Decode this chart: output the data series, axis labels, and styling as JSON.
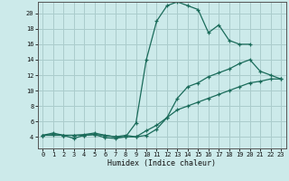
{
  "xlabel": "Humidex (Indice chaleur)",
  "bg_color": "#cceaea",
  "grid_color": "#aacccc",
  "line_color": "#1a6b5a",
  "xlim": [
    -0.5,
    23.5
  ],
  "ylim": [
    2.5,
    21.5
  ],
  "yticks": [
    4,
    6,
    8,
    10,
    12,
    14,
    16,
    18,
    20
  ],
  "xticks": [
    0,
    1,
    2,
    3,
    4,
    5,
    6,
    7,
    8,
    9,
    10,
    11,
    12,
    13,
    14,
    15,
    16,
    17,
    18,
    19,
    20,
    21,
    22,
    23
  ],
  "curve1_x": [
    0,
    1,
    2,
    3,
    4,
    5,
    6,
    7,
    8,
    9,
    10,
    11,
    12,
    13,
    14,
    15,
    16,
    17,
    18,
    19,
    20
  ],
  "curve1_y": [
    4.2,
    4.5,
    4.2,
    3.8,
    4.2,
    4.3,
    3.9,
    3.8,
    4.0,
    5.8,
    14.0,
    19.0,
    21.0,
    21.5,
    21.0,
    20.5,
    17.5,
    18.5,
    16.5,
    16.0,
    16.0
  ],
  "curve2_x": [
    0,
    2,
    3,
    4,
    5,
    6,
    7,
    8,
    9,
    10,
    11,
    12,
    13,
    14,
    15,
    16,
    17,
    18,
    19,
    20,
    21,
    22,
    23
  ],
  "curve2_y": [
    4.2,
    4.2,
    4.2,
    4.3,
    4.5,
    4.2,
    4.0,
    4.2,
    4.0,
    4.2,
    5.0,
    6.5,
    9.0,
    10.5,
    11.0,
    11.8,
    12.3,
    12.8,
    13.5,
    14.0,
    12.5,
    12.0,
    11.5
  ],
  "curve3_x": [
    0,
    1,
    2,
    3,
    4,
    5,
    6,
    7,
    8,
    9,
    10,
    11,
    12,
    13,
    14,
    15,
    16,
    17,
    18,
    19,
    20,
    21,
    22,
    23
  ],
  "curve3_y": [
    4.2,
    4.3,
    4.2,
    4.2,
    4.2,
    4.3,
    4.2,
    4.0,
    4.0,
    4.0,
    4.8,
    5.5,
    6.5,
    7.5,
    8.0,
    8.5,
    9.0,
    9.5,
    10.0,
    10.5,
    11.0,
    11.2,
    11.5,
    11.5
  ]
}
